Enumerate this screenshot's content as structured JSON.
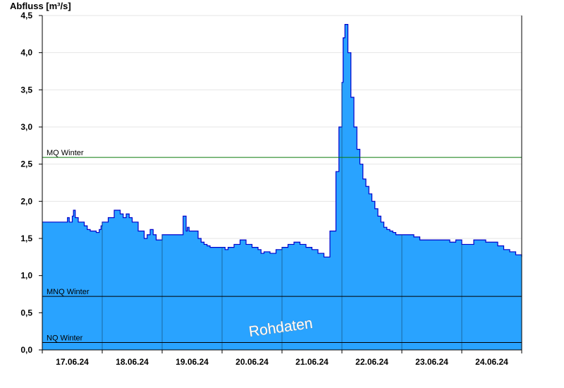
{
  "chart_data": {
    "type": "area",
    "title": "",
    "ylabel": "Abfluss [m³/s]",
    "xlabel": "",
    "ylim": [
      0,
      4.5
    ],
    "yticks": [
      "0,0",
      "0,5",
      "1,0",
      "1,5",
      "2,0",
      "2,5",
      "3,0",
      "3,5",
      "4,0",
      "4,5"
    ],
    "categories": [
      "17.06.24",
      "18.06.24",
      "19.06.24",
      "20.06.24",
      "21.06.24",
      "22.06.24",
      "23.06.24",
      "24.06.24"
    ],
    "grid": true,
    "fill_color": "#29a3ff",
    "line_color": "#0000cc",
    "x_days_range": [
      0,
      8
    ],
    "series": [
      {
        "x": [
          0.0,
          0.35,
          0.42,
          0.45,
          0.5,
          0.52,
          0.55,
          0.6,
          0.63,
          0.7,
          0.75,
          0.8,
          0.9,
          0.95,
          0.98,
          1.0,
          1.05,
          1.1,
          1.2,
          1.3,
          1.35,
          1.4,
          1.45,
          1.5,
          1.6,
          1.7,
          1.75,
          1.8,
          1.85,
          1.9,
          1.95,
          2.0,
          2.1,
          2.2,
          2.3,
          2.35,
          2.4,
          2.42,
          2.45,
          2.5,
          2.6,
          2.65,
          2.7,
          2.75,
          2.8,
          2.9,
          3.0,
          3.05,
          3.1,
          3.2,
          3.3,
          3.4,
          3.5,
          3.6,
          3.65,
          3.7,
          3.8,
          3.9,
          4.0,
          4.1,
          4.2,
          4.3,
          4.4,
          4.5,
          4.6,
          4.7,
          4.8,
          4.9,
          4.95,
          5.0,
          5.02,
          5.05,
          5.1,
          5.15,
          5.2,
          5.25,
          5.3,
          5.35,
          5.4,
          5.45,
          5.5,
          5.55,
          5.6,
          5.65,
          5.7,
          5.75,
          5.8,
          5.85,
          5.9,
          5.95,
          6.0,
          6.1,
          6.2,
          6.3,
          6.5,
          6.7,
          6.8,
          6.9,
          7.0,
          7.2,
          7.4,
          7.5,
          7.6,
          7.7,
          7.8,
          7.9,
          8.0
        ],
        "values": [
          1.72,
          1.72,
          1.78,
          1.72,
          1.8,
          1.88,
          1.78,
          1.72,
          1.72,
          1.67,
          1.62,
          1.6,
          1.58,
          1.62,
          1.67,
          1.72,
          1.72,
          1.78,
          1.88,
          1.83,
          1.78,
          1.83,
          1.78,
          1.72,
          1.6,
          1.5,
          1.55,
          1.62,
          1.55,
          1.48,
          1.48,
          1.55,
          1.55,
          1.55,
          1.55,
          1.8,
          1.6,
          1.65,
          1.6,
          1.6,
          1.5,
          1.45,
          1.42,
          1.4,
          1.38,
          1.38,
          1.38,
          1.35,
          1.38,
          1.42,
          1.48,
          1.42,
          1.38,
          1.35,
          1.3,
          1.32,
          1.3,
          1.35,
          1.38,
          1.42,
          1.45,
          1.42,
          1.38,
          1.35,
          1.3,
          1.25,
          1.6,
          2.4,
          3.0,
          3.6,
          4.2,
          4.38,
          4.0,
          3.4,
          3.0,
          2.7,
          2.5,
          2.3,
          2.2,
          2.1,
          2.0,
          1.9,
          1.8,
          1.72,
          1.65,
          1.62,
          1.6,
          1.58,
          1.55,
          1.55,
          1.55,
          1.55,
          1.52,
          1.48,
          1.48,
          1.48,
          1.45,
          1.48,
          1.42,
          1.48,
          1.45,
          1.45,
          1.4,
          1.35,
          1.32,
          1.28,
          1.25
        ]
      }
    ],
    "reference_lines": [
      {
        "name": "MQ Winter",
        "value": 2.59,
        "color": "#0a7a0a"
      },
      {
        "name": "MNQ Winter",
        "value": 0.72,
        "color": "#000000"
      },
      {
        "name": "NQ Winter",
        "value": 0.1,
        "color": "#000000"
      }
    ],
    "watermark": "Rohdaten"
  }
}
